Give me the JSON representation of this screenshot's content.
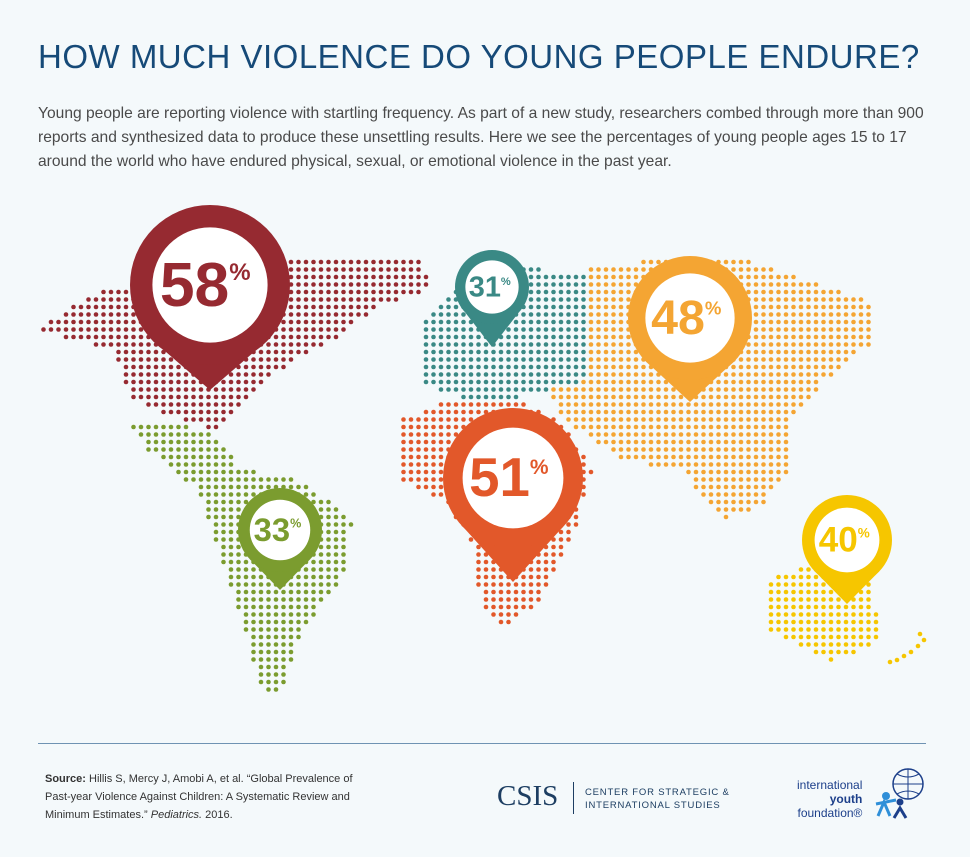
{
  "header": {
    "title": "HOW MUCH VIOLENCE DO YOUNG PEOPLE ENDURE?",
    "intro": "Young people are reporting violence with startling frequency. As part of a new study, researchers combed through more than 900 reports and synthesized data to produce these unsettling results. Here we see the percentages of young people ages 15 to 17 around the world who have endured physical, sexual, or emotional violence in the past year."
  },
  "map": {
    "unit": "%",
    "regions": [
      {
        "value": 58,
        "color": "#962a31"
      },
      {
        "value": 31,
        "color": "#3a8985"
      },
      {
        "value": 48,
        "color": "#f4a533"
      },
      {
        "value": 51,
        "color": "#e2582a"
      },
      {
        "value": 33,
        "color": "#7b9c2f"
      },
      {
        "value": 40,
        "color": "#f6c600"
      }
    ]
  },
  "footer": {
    "source_label": "Source:",
    "source_text": "Hillis S, Mercy J, Amobi A, et al. “Global Prevalence of Past-year Violence Against Children: A Systematic Review and Minimum Estimates.”",
    "journal": "Pediatrics.",
    "year": "2016.",
    "csis": "CSIS",
    "csis_line1": "CENTER FOR STRATEGIC &",
    "csis_line2": "INTERNATIONAL STUDIES",
    "iyf1": "international",
    "iyf2": "youth",
    "iyf3": "foundation®"
  }
}
